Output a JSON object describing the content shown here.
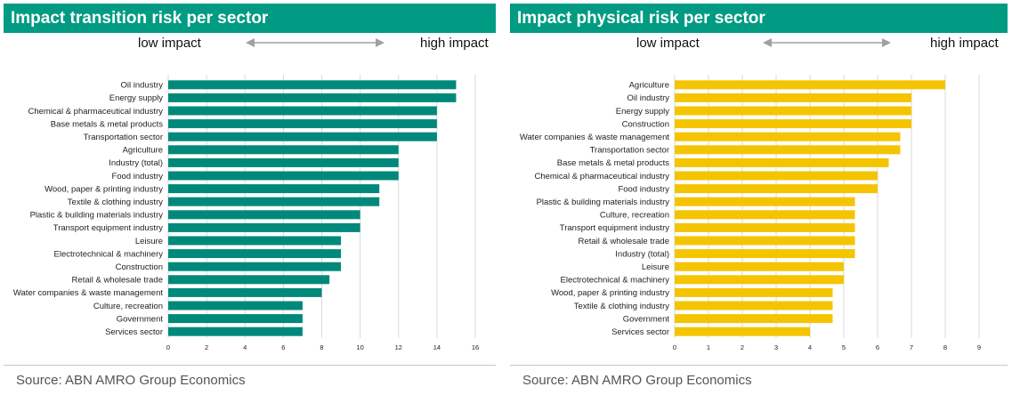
{
  "chart_data": [
    {
      "type": "bar",
      "orientation": "horizontal",
      "title": "Impact transition risk per sector",
      "low_label": "low impact",
      "high_label": "high impact",
      "source": "Source: ABN AMRO Group Economics",
      "categories": [
        "Oil industry",
        "Energy supply",
        "Chemical & pharmaceutical industry",
        "Base metals & metal products",
        "Transportation sector",
        "Agriculture",
        "Industry (total)",
        "Food industry",
        "Wood, paper & printing industry",
        "Textile & clothing industry",
        "Plastic & building materials industry",
        "Transport equipment industry",
        "Leisure",
        "Electrotechnical & machinery",
        "Construction",
        "Retail & wholesale trade",
        "Water companies & waste management",
        "Culture, recreation",
        "Government",
        "Services sector"
      ],
      "values": [
        15,
        15,
        14,
        14,
        14,
        12,
        12,
        12,
        11,
        11,
        10,
        10,
        9,
        9,
        9,
        8.4,
        8,
        7,
        7,
        7
      ],
      "xlim": [
        0,
        16
      ],
      "xticks": [
        "0",
        "2",
        "4",
        "6",
        "8",
        "10",
        "12",
        "14",
        "16"
      ],
      "grid": true,
      "color": "#00897b",
      "header_color": "#009b82"
    },
    {
      "type": "bar",
      "orientation": "horizontal",
      "title": "Impact physical risk per sector",
      "low_label": "low impact",
      "high_label": "high impact",
      "source": "Source: ABN AMRO Group Economics",
      "categories": [
        "Agriculture",
        "Oil industry",
        "Energy supply",
        "Construction",
        "Water companies & waste management",
        "Transportation sector",
        "Base metals & metal products",
        "Chemical & pharmaceutical industry",
        "Food industry",
        "Plastic & building materials industry",
        "Culture, recreation",
        "Transport equipment industry",
        "Retail & wholesale trade",
        "Industry (total)",
        "Leisure",
        "Electrotechnical & machinery",
        "Wood, paper & printing industry",
        "Textile & clothing industry",
        "Government",
        "Services sector"
      ],
      "values": [
        8,
        7,
        7,
        7,
        6.67,
        6.67,
        6.33,
        6,
        6,
        5.33,
        5.33,
        5.33,
        5.33,
        5.33,
        5,
        5,
        4.67,
        4.67,
        4.67,
        4
      ],
      "xlim": [
        0,
        9
      ],
      "xticks": [
        "0",
        "1",
        "2",
        "3",
        "4",
        "5",
        "6",
        "7",
        "8",
        "9"
      ],
      "grid": true,
      "color": "#f5c400",
      "header_color": "#009b82"
    }
  ]
}
